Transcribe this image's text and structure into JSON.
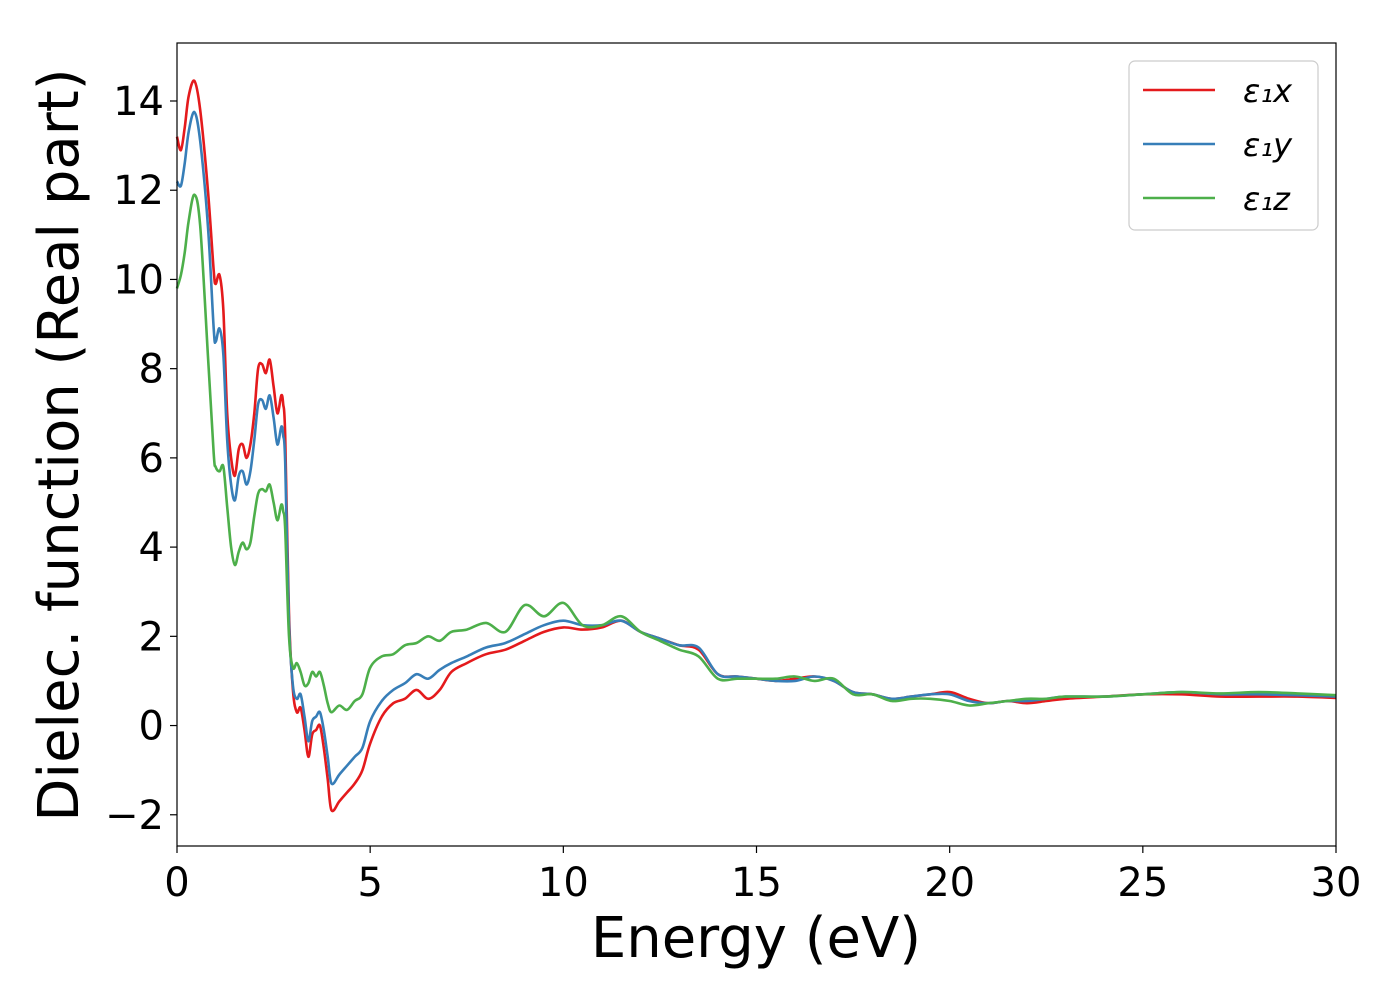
{
  "chart_data": {
    "type": "line",
    "title": "",
    "xlabel": "Energy (eV)",
    "ylabel": "Dielec. function (Real part)",
    "xlim": [
      0,
      30
    ],
    "ylim": [
      -2.7,
      15.3
    ],
    "xticks": [
      0,
      5,
      10,
      15,
      20,
      25,
      30
    ],
    "xtick_labels": [
      "0",
      "5",
      "10",
      "15",
      "20",
      "25",
      "30"
    ],
    "yticks": [
      -2,
      0,
      2,
      4,
      6,
      8,
      10,
      12,
      14
    ],
    "ytick_labels": [
      "−2",
      "0",
      "2",
      "4",
      "6",
      "8",
      "10",
      "12",
      "14"
    ],
    "grid": false,
    "legend_position": "top-right",
    "series": [
      {
        "name": "ε₁x",
        "color": "#e41a1c",
        "x": [
          0,
          0.1,
          0.2,
          0.3,
          0.45,
          0.6,
          0.8,
          0.95,
          1.0,
          1.1,
          1.2,
          1.3,
          1.4,
          1.5,
          1.6,
          1.7,
          1.8,
          1.9,
          2.0,
          2.1,
          2.2,
          2.3,
          2.4,
          2.5,
          2.6,
          2.7,
          2.75,
          2.8,
          2.9,
          3.0,
          3.1,
          3.2,
          3.3,
          3.4,
          3.5,
          3.6,
          3.7,
          3.8,
          3.9,
          4.0,
          4.2,
          4.4,
          4.6,
          4.8,
          5.0,
          5.3,
          5.6,
          5.9,
          6.2,
          6.5,
          6.8,
          7.1,
          7.5,
          8.0,
          8.5,
          9.0,
          9.5,
          10.0,
          10.5,
          11.0,
          11.5,
          12.0,
          12.5,
          13.0,
          13.5,
          14.0,
          14.5,
          15.0,
          15.5,
          16.0,
          16.5,
          17.0,
          17.5,
          18.0,
          18.5,
          19.0,
          19.5,
          20.0,
          20.5,
          21.0,
          21.5,
          22.0,
          22.5,
          23.0,
          24.0,
          25.0,
          26.0,
          27.0,
          28.0,
          29.0,
          30.0
        ],
        "values": [
          13.2,
          12.9,
          13.4,
          14.1,
          14.45,
          13.8,
          12.0,
          10.2,
          9.9,
          10.1,
          9.3,
          7.0,
          6.0,
          5.6,
          6.2,
          6.3,
          6.0,
          6.3,
          7.0,
          8.0,
          8.1,
          7.9,
          8.2,
          7.6,
          7.0,
          7.4,
          7.2,
          6.5,
          2.5,
          0.8,
          0.3,
          0.4,
          -0.1,
          -0.7,
          -0.2,
          -0.1,
          0.0,
          -0.5,
          -1.2,
          -1.9,
          -1.7,
          -1.5,
          -1.3,
          -1.0,
          -0.4,
          0.2,
          0.5,
          0.6,
          0.8,
          0.6,
          0.8,
          1.2,
          1.4,
          1.6,
          1.7,
          1.9,
          2.1,
          2.2,
          2.15,
          2.2,
          2.35,
          2.1,
          1.95,
          1.8,
          1.7,
          1.15,
          1.1,
          1.05,
          1.0,
          1.05,
          1.1,
          1.0,
          0.75,
          0.7,
          0.6,
          0.65,
          0.7,
          0.75,
          0.6,
          0.5,
          0.55,
          0.5,
          0.55,
          0.6,
          0.65,
          0.7,
          0.7,
          0.65,
          0.65,
          0.65,
          0.62
        ]
      },
      {
        "name": "ε₁y",
        "color": "#377eb8",
        "x": [
          0,
          0.1,
          0.2,
          0.3,
          0.45,
          0.6,
          0.8,
          0.95,
          1.0,
          1.1,
          1.2,
          1.3,
          1.4,
          1.5,
          1.6,
          1.7,
          1.8,
          1.9,
          2.0,
          2.1,
          2.2,
          2.3,
          2.4,
          2.5,
          2.6,
          2.7,
          2.75,
          2.8,
          2.9,
          3.0,
          3.1,
          3.2,
          3.3,
          3.4,
          3.5,
          3.6,
          3.7,
          3.8,
          3.9,
          4.0,
          4.2,
          4.4,
          4.6,
          4.8,
          5.0,
          5.3,
          5.6,
          5.9,
          6.2,
          6.5,
          6.8,
          7.1,
          7.5,
          8.0,
          8.5,
          9.0,
          9.5,
          10.0,
          10.5,
          11.0,
          11.5,
          12.0,
          12.5,
          13.0,
          13.5,
          14.0,
          14.5,
          15.0,
          15.5,
          16.0,
          16.5,
          17.0,
          17.5,
          18.0,
          18.5,
          19.0,
          19.5,
          20.0,
          20.5,
          21.0,
          21.5,
          22.0,
          22.5,
          23.0,
          24.0,
          25.0,
          26.0,
          27.0,
          28.0,
          29.0,
          30.0
        ],
        "values": [
          12.2,
          12.1,
          12.6,
          13.3,
          13.75,
          13.1,
          11.2,
          8.9,
          8.6,
          8.9,
          8.3,
          6.4,
          5.4,
          5.05,
          5.6,
          5.7,
          5.4,
          5.7,
          6.4,
          7.2,
          7.3,
          7.1,
          7.4,
          6.9,
          6.3,
          6.7,
          6.5,
          5.9,
          2.3,
          0.9,
          0.6,
          0.7,
          0.2,
          -0.35,
          0.1,
          0.2,
          0.3,
          -0.1,
          -0.7,
          -1.3,
          -1.1,
          -0.9,
          -0.7,
          -0.5,
          0.1,
          0.55,
          0.8,
          0.95,
          1.15,
          1.05,
          1.25,
          1.4,
          1.55,
          1.75,
          1.85,
          2.05,
          2.25,
          2.35,
          2.25,
          2.25,
          2.35,
          2.1,
          1.95,
          1.8,
          1.75,
          1.15,
          1.1,
          1.05,
          1.0,
          1.0,
          1.1,
          1.0,
          0.75,
          0.7,
          0.6,
          0.65,
          0.7,
          0.7,
          0.55,
          0.5,
          0.55,
          0.55,
          0.6,
          0.65,
          0.65,
          0.7,
          0.75,
          0.7,
          0.7,
          0.68,
          0.65
        ]
      },
      {
        "name": "ε₁z",
        "color": "#4daf4a",
        "x": [
          0,
          0.1,
          0.2,
          0.3,
          0.45,
          0.6,
          0.8,
          0.95,
          1.0,
          1.1,
          1.2,
          1.3,
          1.4,
          1.5,
          1.6,
          1.7,
          1.8,
          1.9,
          2.0,
          2.1,
          2.2,
          2.3,
          2.4,
          2.5,
          2.6,
          2.7,
          2.75,
          2.8,
          2.9,
          3.0,
          3.1,
          3.2,
          3.3,
          3.4,
          3.5,
          3.6,
          3.7,
          3.8,
          3.9,
          4.0,
          4.2,
          4.4,
          4.6,
          4.8,
          5.0,
          5.3,
          5.6,
          5.9,
          6.2,
          6.5,
          6.8,
          7.1,
          7.5,
          8.0,
          8.5,
          9.0,
          9.5,
          10.0,
          10.5,
          11.0,
          11.5,
          12.0,
          12.5,
          13.0,
          13.5,
          14.0,
          14.5,
          15.0,
          15.5,
          16.0,
          16.5,
          17.0,
          17.5,
          18.0,
          18.5,
          19.0,
          19.5,
          20.0,
          20.5,
          21.0,
          21.5,
          22.0,
          22.5,
          23.0,
          24.0,
          25.0,
          26.0,
          27.0,
          28.0,
          29.0,
          30.0
        ],
        "values": [
          9.8,
          10.1,
          10.6,
          11.3,
          11.9,
          11.2,
          8.3,
          6.1,
          5.8,
          5.7,
          5.8,
          4.9,
          4.0,
          3.6,
          3.9,
          4.1,
          3.95,
          4.1,
          4.7,
          5.2,
          5.3,
          5.25,
          5.4,
          5.0,
          4.6,
          4.95,
          4.8,
          4.4,
          2.0,
          1.3,
          1.4,
          1.2,
          0.9,
          0.95,
          1.2,
          1.1,
          1.2,
          0.9,
          0.5,
          0.3,
          0.45,
          0.35,
          0.55,
          0.7,
          1.3,
          1.55,
          1.6,
          1.8,
          1.85,
          2.0,
          1.9,
          2.1,
          2.15,
          2.3,
          2.1,
          2.7,
          2.45,
          2.75,
          2.25,
          2.25,
          2.45,
          2.1,
          1.9,
          1.7,
          1.55,
          1.05,
          1.05,
          1.05,
          1.05,
          1.1,
          1.0,
          1.05,
          0.7,
          0.7,
          0.55,
          0.6,
          0.6,
          0.55,
          0.45,
          0.5,
          0.55,
          0.6,
          0.6,
          0.65,
          0.65,
          0.7,
          0.75,
          0.72,
          0.75,
          0.72,
          0.68
        ]
      }
    ]
  }
}
